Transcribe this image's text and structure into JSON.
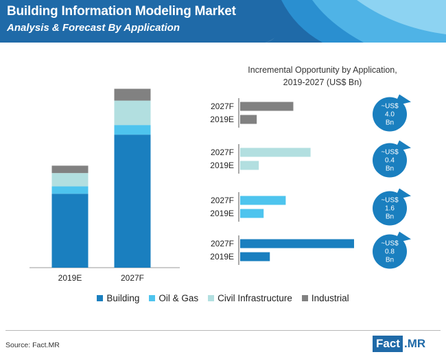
{
  "header": {
    "title": "Building Information Modeling Market",
    "subtitle": "Analysis & Forecast By Application"
  },
  "colors": {
    "header_bg": "#1f6aa8",
    "Building": "#1a7fbf",
    "Oil & Gas": "#4ec4ee",
    "Civil Infrastructure": "#b2dfe0",
    "Industrial": "#818181"
  },
  "chart_data": [
    {
      "type": "bar",
      "stacked": true,
      "categories": [
        "2019E",
        "2027F"
      ],
      "series": [
        {
          "name": "Building",
          "values": [
            1.0,
            1.8
          ]
        },
        {
          "name": "Oil & Gas",
          "values": [
            0.1,
            0.13
          ]
        },
        {
          "name": "Civil Infrastructure",
          "values": [
            0.18,
            0.33
          ]
        },
        {
          "name": "Industrial",
          "values": [
            0.1,
            0.16
          ]
        }
      ],
      "ylim": [
        0,
        2.6
      ],
      "grid": false,
      "legend": [
        "Building",
        "Oil & Gas",
        "Civil Infrastructure",
        "Industrial"
      ],
      "legend_position": "bottom"
    },
    {
      "type": "bar",
      "orientation": "horizontal",
      "title": "Incremental Opportunity by Application, 2019-2027 (US$ Bn)",
      "groups": [
        {
          "application": "Industrial",
          "bars": [
            {
              "label": "2027F",
              "value": 7.7
            },
            {
              "label": "2019E",
              "value": 2.4
            }
          ],
          "bubble": [
            "~US$",
            "4.0",
            "Bn"
          ]
        },
        {
          "application": "Civil Infrastructure",
          "bars": [
            {
              "label": "2027F",
              "value": 10.2
            },
            {
              "label": "2019E",
              "value": 2.7
            }
          ],
          "bubble": [
            "~US$",
            "0.4",
            "Bn"
          ]
        },
        {
          "application": "Oil & Gas",
          "bars": [
            {
              "label": "2027F",
              "value": 6.6
            },
            {
              "label": "2019E",
              "value": 3.4
            }
          ],
          "bubble": [
            "~US$",
            "1.6",
            "Bn"
          ]
        },
        {
          "application": "Building",
          "bars": [
            {
              "label": "2027F",
              "value": 16.5
            },
            {
              "label": "2019E",
              "value": 4.3
            }
          ],
          "bubble": [
            "~US$",
            "0.8",
            "Bn"
          ]
        }
      ],
      "xlim": [
        0,
        18
      ]
    }
  ],
  "footer": {
    "source": "Source: Fact.MR",
    "logo_left": "Fact",
    "logo_right": ".MR"
  }
}
